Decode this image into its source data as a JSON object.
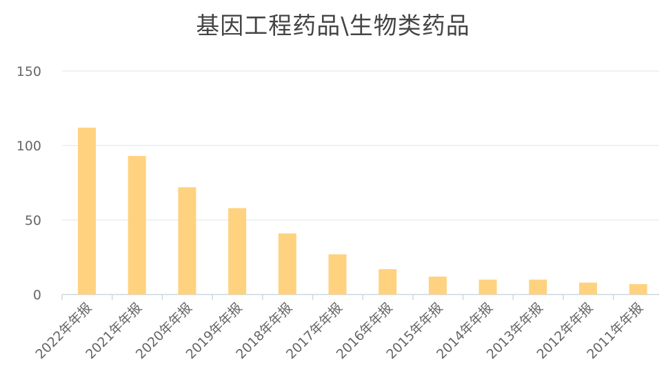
{
  "chart_data": {
    "type": "bar",
    "title": "基因工程药品\\生物类药品",
    "xlabel": "",
    "ylabel": "",
    "categories": [
      "2022年年报",
      "2021年年报",
      "2020年年报",
      "2019年年报",
      "2018年年报",
      "2017年年报",
      "2016年年报",
      "2015年年报",
      "2014年年报",
      "2013年年报",
      "2012年年报",
      "2011年年报"
    ],
    "values": [
      112,
      93,
      72,
      58,
      41,
      27,
      17,
      12,
      10,
      10,
      8,
      7
    ],
    "ylim": [
      0,
      150
    ],
    "yticks": [
      0,
      50,
      100,
      150
    ],
    "grid": true,
    "legend": "none",
    "bar_color": "#FFD27F",
    "grid_color": "#D8E6EE",
    "axis_color": "#C9D9E4"
  }
}
